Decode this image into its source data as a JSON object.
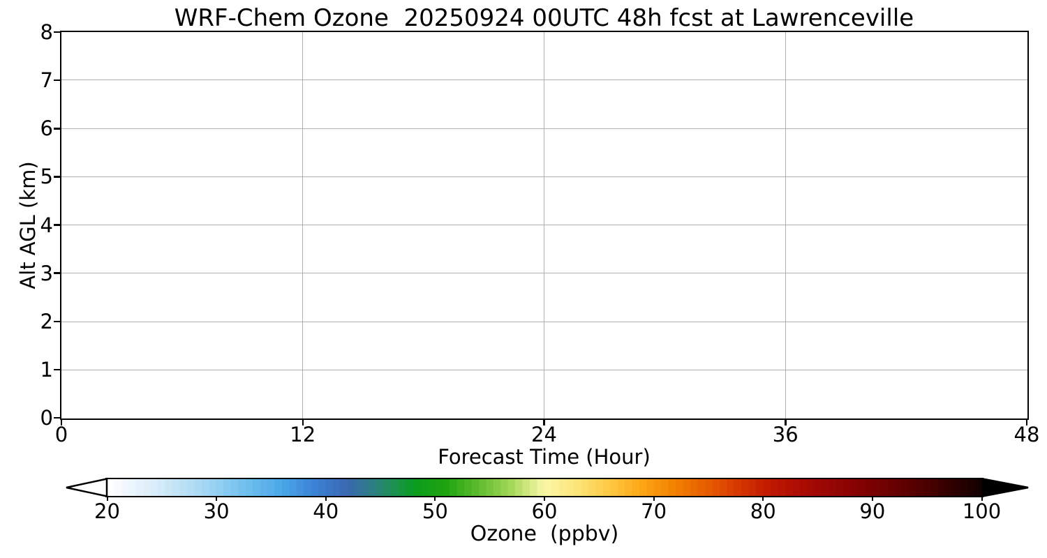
{
  "chart_data": {
    "type": "heatmap",
    "title": "WRF-Chem Ozone  20250924 00UTC 48h fcst at Lawrenceville",
    "xlabel": "Forecast Time (Hour)",
    "ylabel": "Alt AGL (km)",
    "xlim": [
      0,
      48
    ],
    "ylim": [
      0,
      8
    ],
    "xticks": [
      0,
      12,
      24,
      36,
      48
    ],
    "yticks": [
      0,
      1,
      2,
      3,
      4,
      5,
      6,
      7,
      8
    ],
    "grid": true,
    "grid_color": "#b0b0b0",
    "values": [],
    "legend_position": "none",
    "colorbar": {
      "label": "Ozone  (ppbv)",
      "orientation": "horizontal",
      "min": 20,
      "max": 100,
      "ticks": [
        20,
        30,
        40,
        50,
        60,
        70,
        80,
        90,
        100
      ],
      "extend": "both",
      "under_color": "#ffffff",
      "over_color": "#000000",
      "segments": 120,
      "stops": [
        {
          "v": 20,
          "c": "#ffffff"
        },
        {
          "v": 24,
          "c": "#ddeefa"
        },
        {
          "v": 28,
          "c": "#b0dcf5"
        },
        {
          "v": 32,
          "c": "#79c4ef"
        },
        {
          "v": 36,
          "c": "#4aa6e8"
        },
        {
          "v": 39,
          "c": "#3c82d4"
        },
        {
          "v": 42,
          "c": "#3a67b0"
        },
        {
          "v": 44,
          "c": "#2e7b8a"
        },
        {
          "v": 46,
          "c": "#1f8f5a"
        },
        {
          "v": 48,
          "c": "#0a9c20"
        },
        {
          "v": 51,
          "c": "#1ea40f"
        },
        {
          "v": 54,
          "c": "#5fbc2e"
        },
        {
          "v": 57,
          "c": "#a4d858"
        },
        {
          "v": 60,
          "c": "#fbf7a8"
        },
        {
          "v": 63,
          "c": "#fde478"
        },
        {
          "v": 66,
          "c": "#fec843"
        },
        {
          "v": 69,
          "c": "#fda414"
        },
        {
          "v": 72,
          "c": "#f28000"
        },
        {
          "v": 75,
          "c": "#e65a00"
        },
        {
          "v": 78,
          "c": "#d43500"
        },
        {
          "v": 80,
          "c": "#c41e00"
        },
        {
          "v": 83,
          "c": "#ad0d03"
        },
        {
          "v": 86,
          "c": "#990603"
        },
        {
          "v": 90,
          "c": "#7a0000"
        },
        {
          "v": 94,
          "c": "#540000"
        },
        {
          "v": 97,
          "c": "#330000"
        },
        {
          "v": 100,
          "c": "#120000"
        }
      ]
    }
  }
}
